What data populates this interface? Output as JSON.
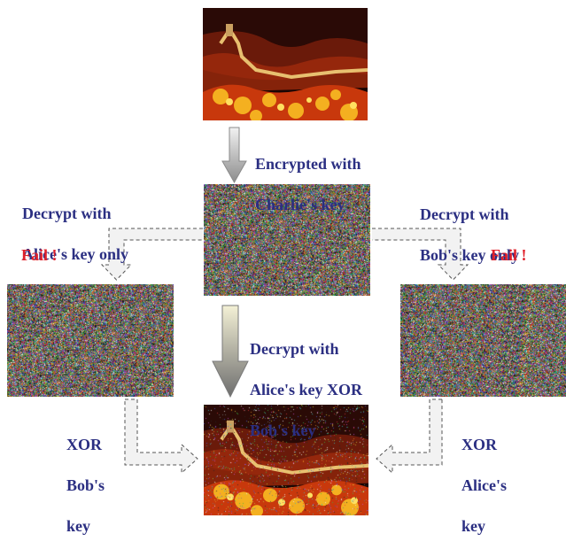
{
  "labels": {
    "encrypted": [
      "Encrypted with",
      "Charlie's key"
    ],
    "decrypt_alice": [
      "Decrypt with",
      "Alice's key only"
    ],
    "decrypt_bob": [
      "Decrypt with",
      "Bob's key only"
    ],
    "fail": "Fail !",
    "decrypt_xor": [
      "Decrypt with",
      "Alice's key XOR",
      "Bob's key"
    ],
    "xor_bob": [
      "XOR",
      "Bob's",
      "key"
    ],
    "xor_alice": [
      "XOR",
      "Alice's",
      "key"
    ]
  },
  "colors": {
    "text": "#2b2f82",
    "fail": "#e0202a",
    "arrow_fill_light": "#f2f2f2",
    "arrow_gradient_top": "#f4f1d6",
    "arrow_gradient_bottom": "#6e6e6e"
  },
  "images": {
    "top": "great-wall-image",
    "bottom": "great-wall-image-decrypted",
    "noise": [
      "encrypted-noise-image",
      "alice-decrypted-noise-image",
      "bob-decrypted-noise-image"
    ]
  }
}
